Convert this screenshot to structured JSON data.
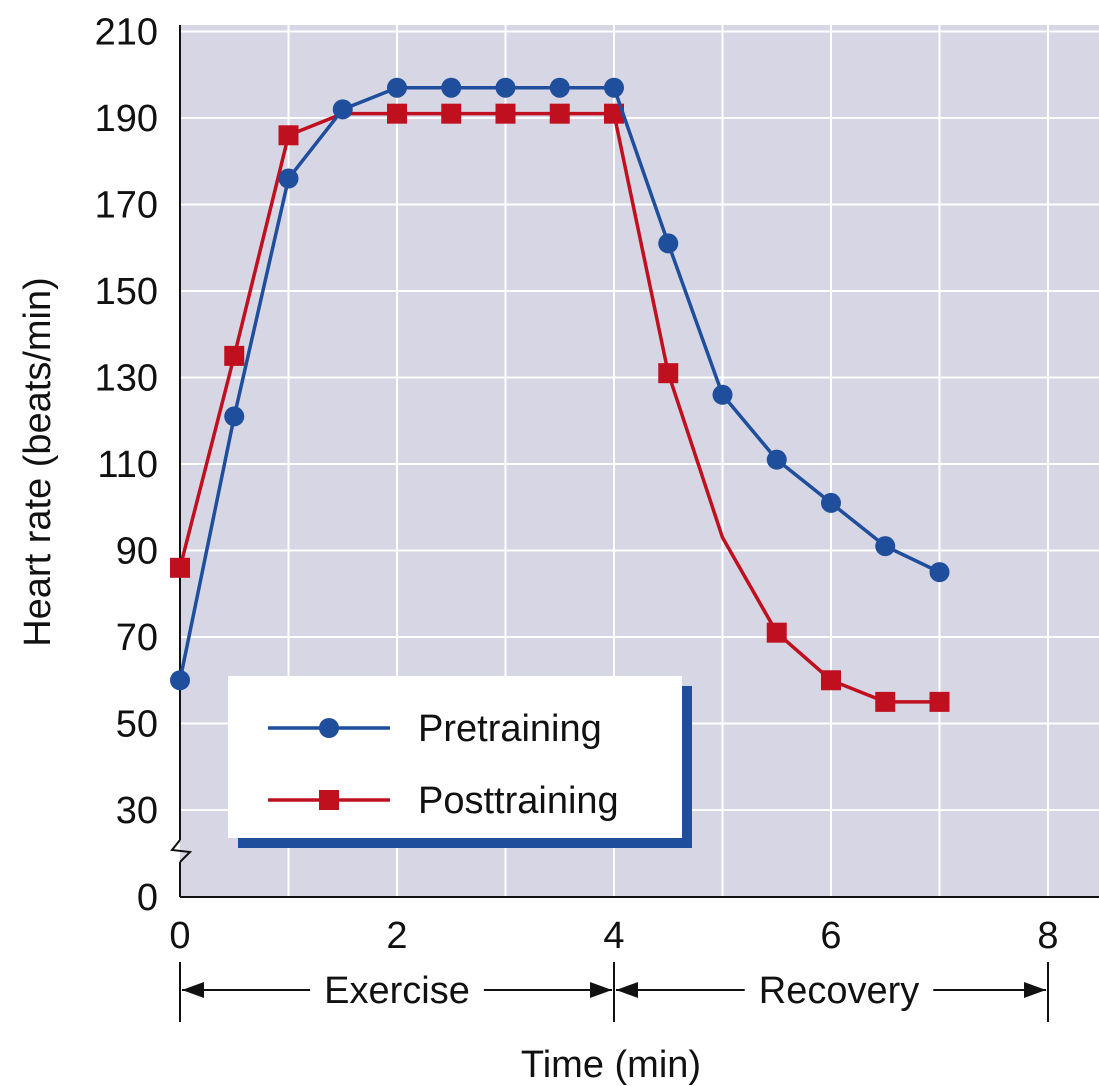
{
  "chart_data": {
    "type": "line",
    "xlabel": "Time (min)",
    "ylabel": "Heart rate (beats/min)",
    "xlim": [
      0,
      8.3
    ],
    "x_ticks": [
      "0",
      "2",
      "4",
      "6",
      "8"
    ],
    "y_ticks": [
      "0",
      "30",
      "50",
      "70",
      "90",
      "110",
      "130",
      "150",
      "170",
      "190",
      "210"
    ],
    "y_axis_break": "between 0 and 30",
    "grid": true,
    "legend_position": "bottom-left",
    "phases": [
      {
        "label": "Exercise",
        "from": 0,
        "to": 4
      },
      {
        "label": "Recovery",
        "from": 4,
        "to": 8
      }
    ],
    "series": [
      {
        "name": "Pretraining",
        "marker": "circle",
        "color": "#1f4e9c",
        "x": [
          0,
          0.5,
          1,
          1.5,
          2,
          2.5,
          3,
          3.5,
          4,
          4.5,
          5,
          5.5,
          6,
          6.5,
          7
        ],
        "y": [
          60,
          121,
          176,
          192,
          197,
          197,
          197,
          197,
          197,
          161,
          126,
          111,
          101,
          91,
          85
        ],
        "marked": [
          true,
          true,
          true,
          true,
          true,
          true,
          true,
          true,
          true,
          true,
          true,
          true,
          true,
          true,
          true
        ]
      },
      {
        "name": "Posttraining",
        "marker": "square",
        "color": "#c0101f",
        "x": [
          0,
          0.5,
          1,
          1.5,
          2,
          2.5,
          3,
          3.5,
          4,
          4.5,
          5,
          5.5,
          6,
          6.5,
          7
        ],
        "y": [
          86,
          135,
          186,
          191,
          191,
          191,
          191,
          191,
          191,
          131,
          93,
          71,
          60,
          55,
          55
        ],
        "marked": [
          true,
          true,
          true,
          false,
          true,
          true,
          true,
          true,
          true,
          true,
          false,
          true,
          true,
          true,
          true
        ]
      }
    ]
  },
  "colors": {
    "plot_background": "#d6d6e4",
    "grid": "#ffffff",
    "legend_shadow": "#1f4e9c"
  }
}
